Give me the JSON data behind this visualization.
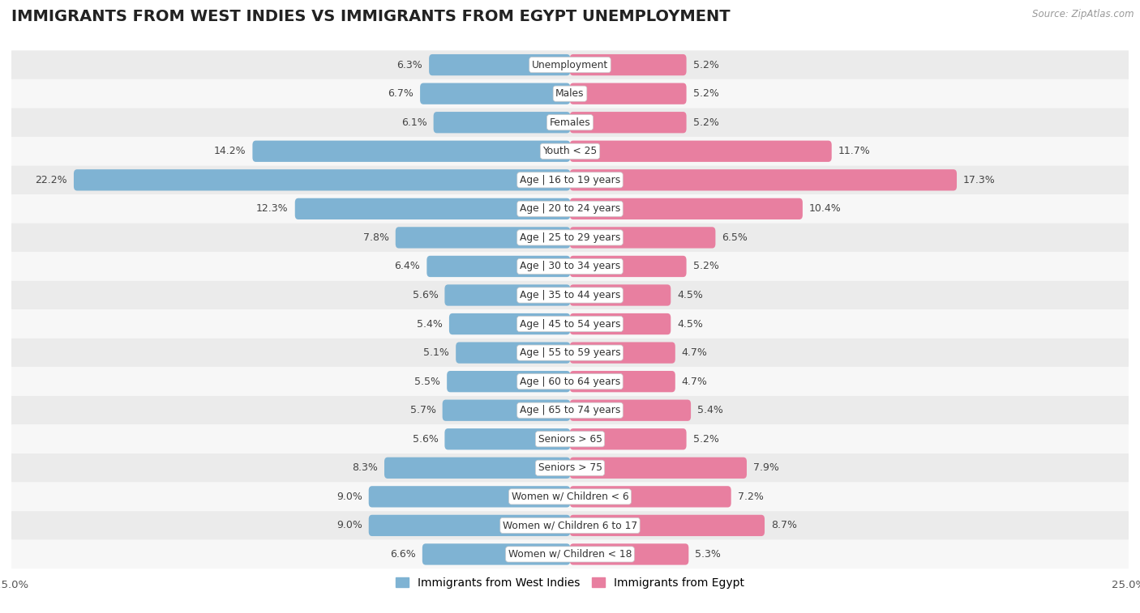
{
  "title": "IMMIGRANTS FROM WEST INDIES VS IMMIGRANTS FROM EGYPT UNEMPLOYMENT",
  "source": "Source: ZipAtlas.com",
  "categories": [
    "Unemployment",
    "Males",
    "Females",
    "Youth < 25",
    "Age | 16 to 19 years",
    "Age | 20 to 24 years",
    "Age | 25 to 29 years",
    "Age | 30 to 34 years",
    "Age | 35 to 44 years",
    "Age | 45 to 54 years",
    "Age | 55 to 59 years",
    "Age | 60 to 64 years",
    "Age | 65 to 74 years",
    "Seniors > 65",
    "Seniors > 75",
    "Women w/ Children < 6",
    "Women w/ Children 6 to 17",
    "Women w/ Children < 18"
  ],
  "west_indies": [
    6.3,
    6.7,
    6.1,
    14.2,
    22.2,
    12.3,
    7.8,
    6.4,
    5.6,
    5.4,
    5.1,
    5.5,
    5.7,
    5.6,
    8.3,
    9.0,
    9.0,
    6.6
  ],
  "egypt": [
    5.2,
    5.2,
    5.2,
    11.7,
    17.3,
    10.4,
    6.5,
    5.2,
    4.5,
    4.5,
    4.7,
    4.7,
    5.4,
    5.2,
    7.9,
    7.2,
    8.7,
    5.3
  ],
  "west_indies_color": "#7fb3d3",
  "egypt_color": "#e87fa0",
  "west_indies_label": "Immigrants from West Indies",
  "egypt_label": "Immigrants from Egypt",
  "xlim": 25.0,
  "row_color_even": "#ebebeb",
  "row_color_odd": "#f7f7f7",
  "title_fontsize": 14,
  "bar_height": 0.72
}
